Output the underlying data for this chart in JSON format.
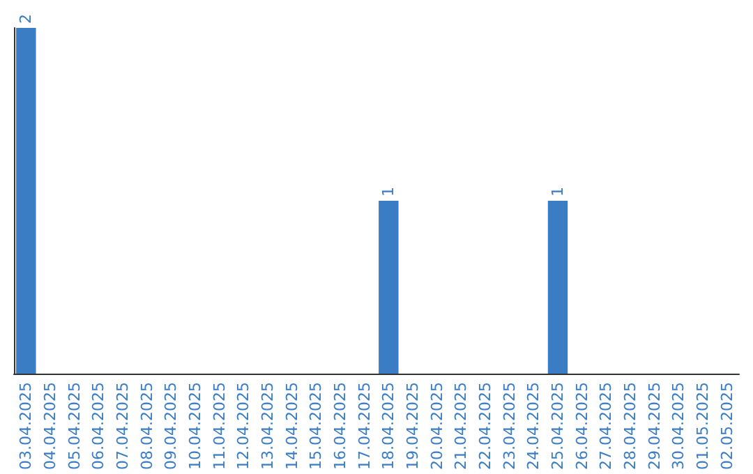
{
  "chart_data": {
    "type": "bar",
    "categories": [
      "03.04.2025",
      "04.04.2025",
      "05.04.2025",
      "06.04.2025",
      "07.04.2025",
      "08.04.2025",
      "09.04.2025",
      "10.04.2025",
      "11.04.2025",
      "12.04.2025",
      "13.04.2025",
      "14.04.2025",
      "15.04.2025",
      "16.04.2025",
      "17.04.2025",
      "18.04.2025",
      "19.04.2025",
      "20.04.2025",
      "21.04.2025",
      "22.04.2025",
      "23.04.2025",
      "24.04.2025",
      "25.04.2025",
      "26.04.2025",
      "27.04.2025",
      "28.04.2025",
      "29.04.2025",
      "30.04.2025",
      "01.05.2025",
      "02.05.2025"
    ],
    "values": [
      2,
      0,
      0,
      0,
      0,
      0,
      0,
      0,
      0,
      0,
      0,
      0,
      0,
      0,
      0,
      1,
      0,
      0,
      0,
      0,
      0,
      0,
      1,
      0,
      0,
      0,
      0,
      0,
      0,
      0
    ],
    "value_labels": [
      "2",
      null,
      null,
      null,
      null,
      null,
      null,
      null,
      null,
      null,
      null,
      null,
      null,
      null,
      null,
      "1",
      null,
      null,
      null,
      null,
      null,
      null,
      "1",
      null,
      null,
      null,
      null,
      null,
      null,
      null
    ],
    "color": "#3b7dc4",
    "grid": false
  }
}
